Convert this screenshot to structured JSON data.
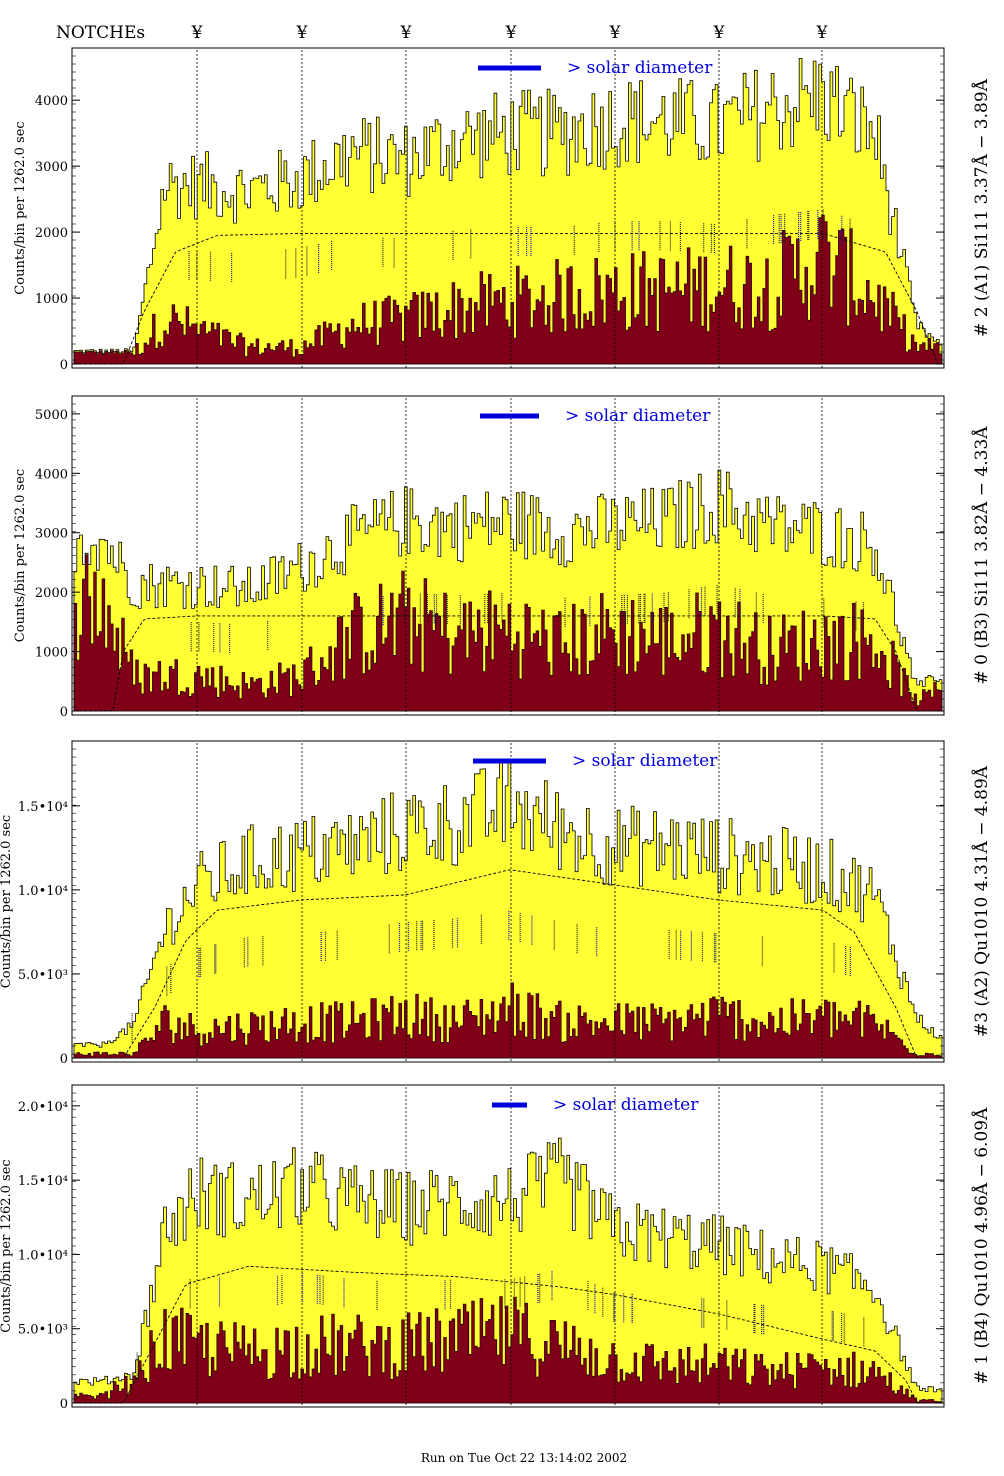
{
  "header": {
    "notches_label": "NOTCHEs",
    "notch_symbol": "¥",
    "footer": "Run on Tue Oct 22 13:14:02 2002"
  },
  "colors": {
    "envelope": "#ffff33",
    "inner": "#800018",
    "bar_legend": "#0000dd",
    "annotation": "#1010c0"
  },
  "chart_data": [
    {
      "type": "area",
      "title": "# 2 (A1) Si111  3.37Å − 3.89Å",
      "ylabel": "Counts/bin per    1262.0 sec",
      "legend": "> solar diameter",
      "ylim": [
        0,
        4700
      ],
      "y_ticks": [
        0,
        1000,
        2000,
        3000,
        4000
      ],
      "y_tick_labels": [
        "0",
        "1000",
        "2000",
        "3000",
        "4000"
      ],
      "notches": [
        1,
        2,
        3,
        4,
        5,
        6,
        7
      ],
      "envelope_peaks": [
        [
          0.4,
          200
        ],
        [
          0.7,
          2800
        ],
        [
          1.0,
          2800
        ],
        [
          1.5,
          2700
        ],
        [
          2.0,
          2900
        ],
        [
          2.5,
          3300
        ],
        [
          3.0,
          3200
        ],
        [
          3.5,
          3500
        ],
        [
          4.0,
          3600
        ],
        [
          4.5,
          3600
        ],
        [
          5.0,
          3800
        ],
        [
          5.5,
          3800
        ],
        [
          6.0,
          3700
        ],
        [
          6.5,
          4000
        ],
        [
          7.0,
          4200
        ],
        [
          7.5,
          3600
        ],
        [
          7.9,
          600
        ],
        [
          8.2,
          200
        ]
      ],
      "inner_peaks": [
        [
          0.1,
          900
        ],
        [
          0.4,
          200
        ],
        [
          0.7,
          800
        ],
        [
          1.5,
          300
        ],
        [
          2.0,
          300
        ],
        [
          2.5,
          700
        ],
        [
          3.0,
          800
        ],
        [
          3.5,
          1000
        ],
        [
          4.0,
          1100
        ],
        [
          4.5,
          1200
        ],
        [
          5.0,
          1300
        ],
        [
          5.5,
          1300
        ],
        [
          6.0,
          1400
        ],
        [
          6.5,
          1400
        ],
        [
          7.0,
          1900
        ],
        [
          7.5,
          1200
        ],
        [
          7.9,
          300
        ],
        [
          8.2,
          300
        ]
      ],
      "model_curve": [
        [
          0.3,
          0
        ],
        [
          0.5,
          800
        ],
        [
          0.8,
          1700
        ],
        [
          1.2,
          1950
        ],
        [
          2.0,
          1980
        ],
        [
          7.0,
          1980
        ],
        [
          7.6,
          1700
        ],
        [
          7.9,
          800
        ],
        [
          8.1,
          0
        ]
      ]
    },
    {
      "type": "area",
      "title": "# 0 (B3) Si111  3.82Å − 4.33Å",
      "ylabel": "Counts/bin per    1262.0 sec",
      "legend": "> solar diameter",
      "ylim": [
        0,
        5200
      ],
      "y_ticks": [
        0,
        1000,
        2000,
        3000,
        4000,
        5000
      ],
      "y_tick_labels": [
        "0",
        "1000",
        "2000",
        "3000",
        "4000",
        "5000"
      ],
      "notches": [
        1,
        2,
        3,
        4,
        5,
        6,
        7
      ],
      "envelope_peaks": [
        [
          0.1,
          3000
        ],
        [
          0.4,
          2200
        ],
        [
          1.0,
          2200
        ],
        [
          1.5,
          2100
        ],
        [
          2.0,
          2500
        ],
        [
          2.5,
          3000
        ],
        [
          3.0,
          3300
        ],
        [
          3.5,
          3200
        ],
        [
          4.0,
          3300
        ],
        [
          4.5,
          3100
        ],
        [
          5.0,
          3200
        ],
        [
          5.5,
          3300
        ],
        [
          6.0,
          3600
        ],
        [
          6.5,
          3200
        ],
        [
          7.0,
          3100
        ],
        [
          7.5,
          2900
        ],
        [
          7.9,
          400
        ],
        [
          8.2,
          700
        ]
      ],
      "inner_peaks": [
        [
          0.1,
          2200
        ],
        [
          0.4,
          700
        ],
        [
          1.0,
          700
        ],
        [
          1.5,
          500
        ],
        [
          2.0,
          700
        ],
        [
          2.5,
          1500
        ],
        [
          3.0,
          1800
        ],
        [
          3.5,
          1500
        ],
        [
          4.0,
          1600
        ],
        [
          4.5,
          1300
        ],
        [
          5.0,
          1600
        ],
        [
          5.5,
          1400
        ],
        [
          6.0,
          1600
        ],
        [
          6.5,
          1200
        ],
        [
          7.0,
          1400
        ],
        [
          7.5,
          1400
        ],
        [
          7.9,
          200
        ],
        [
          8.2,
          500
        ]
      ],
      "model_curve": [
        [
          0.2,
          0
        ],
        [
          0.3,
          1000
        ],
        [
          0.5,
          1550
        ],
        [
          1.0,
          1600
        ],
        [
          7.0,
          1600
        ],
        [
          7.5,
          1550
        ],
        [
          7.7,
          1000
        ],
        [
          7.9,
          0
        ]
      ]
    },
    {
      "type": "area",
      "title": "#3 (A2) Qu1010  4.31Å − 4.89Å",
      "ylabel": "Counts/bin per    1262.0 sec",
      "legend": "> solar diameter",
      "ylim": [
        0,
        18500
      ],
      "y_ticks": [
        0,
        5000,
        10000,
        15000
      ],
      "y_tick_labels": [
        "0",
        "5.0•10³",
        "1.0•10⁴",
        "1.5•10⁴"
      ],
      "notches": [
        1,
        2,
        3,
        4,
        5,
        6,
        7
      ],
      "envelope_peaks": [
        [
          0.1,
          800
        ],
        [
          0.4,
          2000
        ],
        [
          0.7,
          8000
        ],
        [
          1.0,
          10500
        ],
        [
          1.5,
          12000
        ],
        [
          2.0,
          12500
        ],
        [
          2.5,
          13000
        ],
        [
          3.0,
          14000
        ],
        [
          3.5,
          14500
        ],
        [
          4.0,
          15500
        ],
        [
          4.5,
          14000
        ],
        [
          5.0,
          13000
        ],
        [
          5.5,
          13000
        ],
        [
          6.0,
          12500
        ],
        [
          6.5,
          12000
        ],
        [
          7.0,
          11500
        ],
        [
          7.5,
          10000
        ],
        [
          7.9,
          2500
        ],
        [
          8.2,
          800
        ]
      ],
      "inner_peaks": [
        [
          0.4,
          300
        ],
        [
          0.7,
          2500
        ],
        [
          1.0,
          2000
        ],
        [
          1.5,
          2200
        ],
        [
          2.0,
          2500
        ],
        [
          2.5,
          2500
        ],
        [
          3.0,
          3000
        ],
        [
          3.5,
          2500
        ],
        [
          4.0,
          3500
        ],
        [
          4.5,
          2500
        ],
        [
          5.0,
          2500
        ],
        [
          5.5,
          2500
        ],
        [
          6.0,
          3000
        ],
        [
          6.5,
          2500
        ],
        [
          7.0,
          2800
        ],
        [
          7.5,
          2500
        ],
        [
          7.9,
          300
        ]
      ],
      "model_curve": [
        [
          0.3,
          0
        ],
        [
          0.6,
          3000
        ],
        [
          0.9,
          7000
        ],
        [
          1.2,
          8800
        ],
        [
          2.0,
          9400
        ],
        [
          3.0,
          9700
        ],
        [
          4.0,
          11200
        ],
        [
          5.0,
          10300
        ],
        [
          6.0,
          9400
        ],
        [
          7.0,
          8800
        ],
        [
          7.3,
          7500
        ],
        [
          7.7,
          3000
        ],
        [
          7.9,
          0
        ]
      ]
    },
    {
      "type": "area",
      "title": "# 1 (B4) Qu1010 4.96Å − 6.09Å",
      "ylabel": "Counts/bin per    1262.0 sec",
      "legend": "> solar diameter",
      "ylim": [
        0,
        21000
      ],
      "y_ticks": [
        0,
        5000,
        10000,
        15000,
        20000
      ],
      "y_tick_labels": [
        "0",
        "5.0•10³",
        "1.0•10⁴",
        "1.5•10⁴",
        "2.0•10⁴"
      ],
      "notches": [
        1,
        2,
        3,
        4,
        5,
        6,
        7
      ],
      "envelope_peaks": [
        [
          0.1,
          1500
        ],
        [
          0.4,
          2000
        ],
        [
          0.7,
          12000
        ],
        [
          1.0,
          14500
        ],
        [
          1.5,
          14000
        ],
        [
          2.0,
          15000
        ],
        [
          2.5,
          14000
        ],
        [
          3.0,
          13500
        ],
        [
          3.5,
          14000
        ],
        [
          4.0,
          14000
        ],
        [
          4.5,
          15500
        ],
        [
          5.0,
          12000
        ],
        [
          5.5,
          11500
        ],
        [
          6.0,
          11000
        ],
        [
          6.5,
          10000
        ],
        [
          7.0,
          9500
        ],
        [
          7.5,
          8000
        ],
        [
          7.9,
          1000
        ],
        [
          8.2,
          900
        ]
      ],
      "inner_peaks": [
        [
          0.1,
          500
        ],
        [
          0.4,
          2000
        ],
        [
          0.7,
          5000
        ],
        [
          1.0,
          4500
        ],
        [
          1.5,
          4000
        ],
        [
          2.0,
          4500
        ],
        [
          2.5,
          4500
        ],
        [
          3.0,
          4500
        ],
        [
          3.5,
          5000
        ],
        [
          4.0,
          5500
        ],
        [
          4.5,
          4500
        ],
        [
          5.0,
          3500
        ],
        [
          5.5,
          3000
        ],
        [
          6.0,
          3000
        ],
        [
          6.5,
          2500
        ],
        [
          7.0,
          2800
        ],
        [
          7.5,
          2500
        ],
        [
          7.9,
          200
        ]
      ],
      "model_curve": [
        [
          0.3,
          0
        ],
        [
          0.6,
          4000
        ],
        [
          0.9,
          8000
        ],
        [
          1.5,
          9200
        ],
        [
          2.5,
          8800
        ],
        [
          3.5,
          8500
        ],
        [
          4.5,
          7800
        ],
        [
          5.0,
          7300
        ],
        [
          6.0,
          6000
        ],
        [
          7.0,
          4300
        ],
        [
          7.5,
          3500
        ],
        [
          7.8,
          1500
        ],
        [
          7.9,
          0
        ]
      ]
    }
  ]
}
